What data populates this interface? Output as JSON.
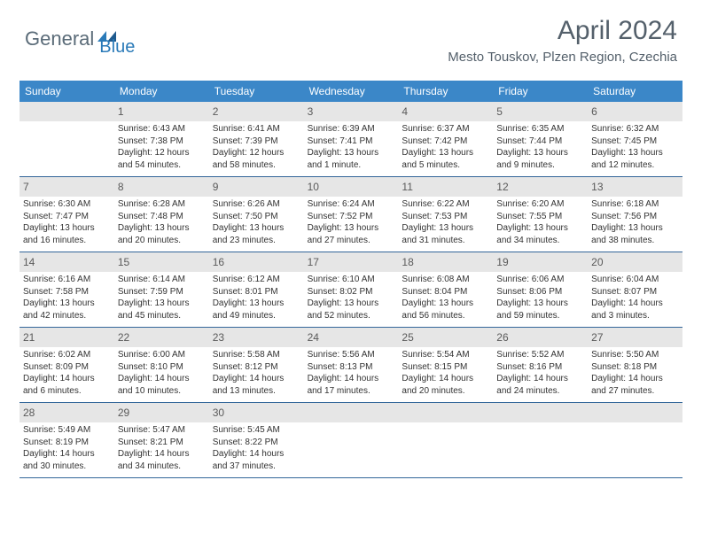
{
  "logo": {
    "part1": "General",
    "part2": "Blue"
  },
  "title": "April 2024",
  "location": "Mesto Touskov, Plzen Region, Czechia",
  "colors": {
    "header_bg": "#3b87c8",
    "header_text": "#ffffff",
    "daynum_bg": "#e6e6e6",
    "border": "#336699",
    "title_color": "#54606b"
  },
  "day_names": [
    "Sunday",
    "Monday",
    "Tuesday",
    "Wednesday",
    "Thursday",
    "Friday",
    "Saturday"
  ],
  "weeks": [
    [
      {
        "num": "",
        "lines": []
      },
      {
        "num": "1",
        "lines": [
          "Sunrise: 6:43 AM",
          "Sunset: 7:38 PM",
          "Daylight: 12 hours",
          "and 54 minutes."
        ]
      },
      {
        "num": "2",
        "lines": [
          "Sunrise: 6:41 AM",
          "Sunset: 7:39 PM",
          "Daylight: 12 hours",
          "and 58 minutes."
        ]
      },
      {
        "num": "3",
        "lines": [
          "Sunrise: 6:39 AM",
          "Sunset: 7:41 PM",
          "Daylight: 13 hours",
          "and 1 minute."
        ]
      },
      {
        "num": "4",
        "lines": [
          "Sunrise: 6:37 AM",
          "Sunset: 7:42 PM",
          "Daylight: 13 hours",
          "and 5 minutes."
        ]
      },
      {
        "num": "5",
        "lines": [
          "Sunrise: 6:35 AM",
          "Sunset: 7:44 PM",
          "Daylight: 13 hours",
          "and 9 minutes."
        ]
      },
      {
        "num": "6",
        "lines": [
          "Sunrise: 6:32 AM",
          "Sunset: 7:45 PM",
          "Daylight: 13 hours",
          "and 12 minutes."
        ]
      }
    ],
    [
      {
        "num": "7",
        "lines": [
          "Sunrise: 6:30 AM",
          "Sunset: 7:47 PM",
          "Daylight: 13 hours",
          "and 16 minutes."
        ]
      },
      {
        "num": "8",
        "lines": [
          "Sunrise: 6:28 AM",
          "Sunset: 7:48 PM",
          "Daylight: 13 hours",
          "and 20 minutes."
        ]
      },
      {
        "num": "9",
        "lines": [
          "Sunrise: 6:26 AM",
          "Sunset: 7:50 PM",
          "Daylight: 13 hours",
          "and 23 minutes."
        ]
      },
      {
        "num": "10",
        "lines": [
          "Sunrise: 6:24 AM",
          "Sunset: 7:52 PM",
          "Daylight: 13 hours",
          "and 27 minutes."
        ]
      },
      {
        "num": "11",
        "lines": [
          "Sunrise: 6:22 AM",
          "Sunset: 7:53 PM",
          "Daylight: 13 hours",
          "and 31 minutes."
        ]
      },
      {
        "num": "12",
        "lines": [
          "Sunrise: 6:20 AM",
          "Sunset: 7:55 PM",
          "Daylight: 13 hours",
          "and 34 minutes."
        ]
      },
      {
        "num": "13",
        "lines": [
          "Sunrise: 6:18 AM",
          "Sunset: 7:56 PM",
          "Daylight: 13 hours",
          "and 38 minutes."
        ]
      }
    ],
    [
      {
        "num": "14",
        "lines": [
          "Sunrise: 6:16 AM",
          "Sunset: 7:58 PM",
          "Daylight: 13 hours",
          "and 42 minutes."
        ]
      },
      {
        "num": "15",
        "lines": [
          "Sunrise: 6:14 AM",
          "Sunset: 7:59 PM",
          "Daylight: 13 hours",
          "and 45 minutes."
        ]
      },
      {
        "num": "16",
        "lines": [
          "Sunrise: 6:12 AM",
          "Sunset: 8:01 PM",
          "Daylight: 13 hours",
          "and 49 minutes."
        ]
      },
      {
        "num": "17",
        "lines": [
          "Sunrise: 6:10 AM",
          "Sunset: 8:02 PM",
          "Daylight: 13 hours",
          "and 52 minutes."
        ]
      },
      {
        "num": "18",
        "lines": [
          "Sunrise: 6:08 AM",
          "Sunset: 8:04 PM",
          "Daylight: 13 hours",
          "and 56 minutes."
        ]
      },
      {
        "num": "19",
        "lines": [
          "Sunrise: 6:06 AM",
          "Sunset: 8:06 PM",
          "Daylight: 13 hours",
          "and 59 minutes."
        ]
      },
      {
        "num": "20",
        "lines": [
          "Sunrise: 6:04 AM",
          "Sunset: 8:07 PM",
          "Daylight: 14 hours",
          "and 3 minutes."
        ]
      }
    ],
    [
      {
        "num": "21",
        "lines": [
          "Sunrise: 6:02 AM",
          "Sunset: 8:09 PM",
          "Daylight: 14 hours",
          "and 6 minutes."
        ]
      },
      {
        "num": "22",
        "lines": [
          "Sunrise: 6:00 AM",
          "Sunset: 8:10 PM",
          "Daylight: 14 hours",
          "and 10 minutes."
        ]
      },
      {
        "num": "23",
        "lines": [
          "Sunrise: 5:58 AM",
          "Sunset: 8:12 PM",
          "Daylight: 14 hours",
          "and 13 minutes."
        ]
      },
      {
        "num": "24",
        "lines": [
          "Sunrise: 5:56 AM",
          "Sunset: 8:13 PM",
          "Daylight: 14 hours",
          "and 17 minutes."
        ]
      },
      {
        "num": "25",
        "lines": [
          "Sunrise: 5:54 AM",
          "Sunset: 8:15 PM",
          "Daylight: 14 hours",
          "and 20 minutes."
        ]
      },
      {
        "num": "26",
        "lines": [
          "Sunrise: 5:52 AM",
          "Sunset: 8:16 PM",
          "Daylight: 14 hours",
          "and 24 minutes."
        ]
      },
      {
        "num": "27",
        "lines": [
          "Sunrise: 5:50 AM",
          "Sunset: 8:18 PM",
          "Daylight: 14 hours",
          "and 27 minutes."
        ]
      }
    ],
    [
      {
        "num": "28",
        "lines": [
          "Sunrise: 5:49 AM",
          "Sunset: 8:19 PM",
          "Daylight: 14 hours",
          "and 30 minutes."
        ]
      },
      {
        "num": "29",
        "lines": [
          "Sunrise: 5:47 AM",
          "Sunset: 8:21 PM",
          "Daylight: 14 hours",
          "and 34 minutes."
        ]
      },
      {
        "num": "30",
        "lines": [
          "Sunrise: 5:45 AM",
          "Sunset: 8:22 PM",
          "Daylight: 14 hours",
          "and 37 minutes."
        ]
      },
      {
        "num": "",
        "lines": []
      },
      {
        "num": "",
        "lines": []
      },
      {
        "num": "",
        "lines": []
      },
      {
        "num": "",
        "lines": []
      }
    ]
  ]
}
